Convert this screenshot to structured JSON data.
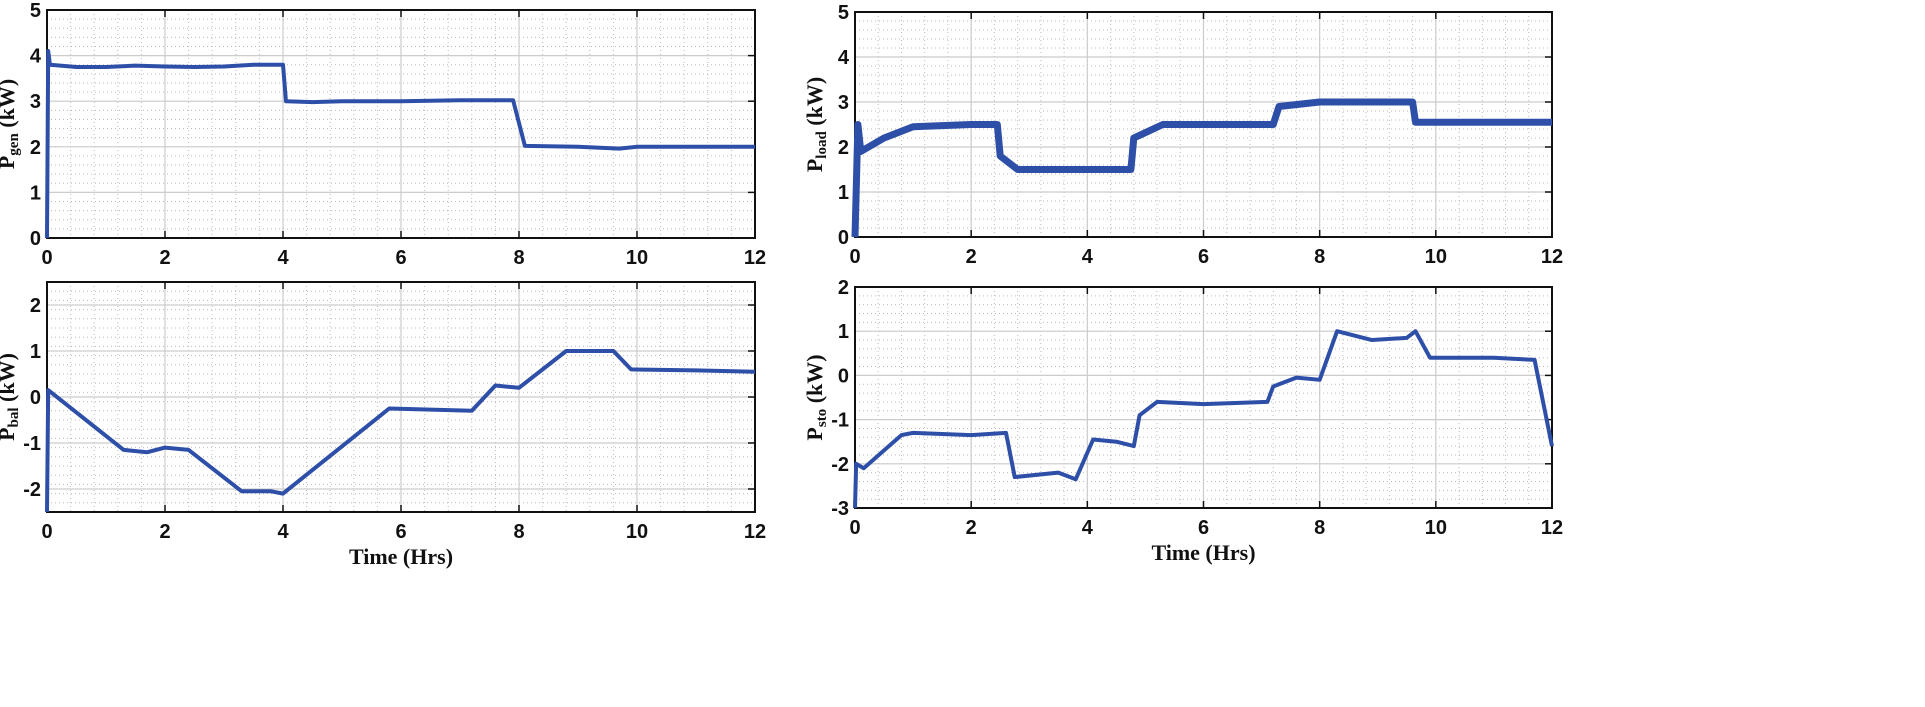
{
  "chart_data": [
    {
      "type": "line",
      "ylabel": {
        "main": "P",
        "sub": "gen",
        "unit": " (kW)"
      },
      "xlabel": "",
      "xlim": [
        0,
        12
      ],
      "ylim": [
        0,
        5
      ],
      "xticks": [
        0,
        2,
        4,
        6,
        8,
        10,
        12
      ],
      "yticks": [
        0,
        1,
        2,
        3,
        4,
        5
      ],
      "grid": true,
      "color": "#2e4fa8",
      "points": [
        [
          0,
          0
        ],
        [
          0.02,
          4.1
        ],
        [
          0.05,
          3.8
        ],
        [
          0.5,
          3.75
        ],
        [
          1,
          3.75
        ],
        [
          1.5,
          3.78
        ],
        [
          2,
          3.76
        ],
        [
          2.5,
          3.75
        ],
        [
          3,
          3.76
        ],
        [
          3.5,
          3.8
        ],
        [
          3.9,
          3.8
        ],
        [
          4,
          3.8
        ],
        [
          4.05,
          3.0
        ],
        [
          4.5,
          2.98
        ],
        [
          5,
          3.0
        ],
        [
          6,
          3.0
        ],
        [
          7,
          3.02
        ],
        [
          7.9,
          3.02
        ],
        [
          8.1,
          2.02
        ],
        [
          9,
          2.0
        ],
        [
          9.7,
          1.96
        ],
        [
          10,
          2.0
        ],
        [
          12,
          2.0
        ]
      ]
    },
    {
      "type": "line",
      "ylabel": {
        "main": "P",
        "sub": "load",
        "unit": " (kW)"
      },
      "xlabel": "",
      "xlim": [
        0,
        12
      ],
      "ylim": [
        0,
        5
      ],
      "xticks": [
        0,
        2,
        4,
        6,
        8,
        10,
        12
      ],
      "yticks": [
        0,
        1,
        2,
        3,
        4,
        5
      ],
      "grid": true,
      "color": "#2e4fa8",
      "points": [
        [
          0,
          0
        ],
        [
          0.05,
          2.5
        ],
        [
          0.1,
          1.9
        ],
        [
          0.5,
          2.2
        ],
        [
          1,
          2.45
        ],
        [
          2,
          2.5
        ],
        [
          2.45,
          2.5
        ],
        [
          2.5,
          1.8
        ],
        [
          2.8,
          1.5
        ],
        [
          4,
          1.5
        ],
        [
          4.75,
          1.5
        ],
        [
          4.8,
          2.2
        ],
        [
          5.3,
          2.5
        ],
        [
          7.2,
          2.5
        ],
        [
          7.3,
          2.9
        ],
        [
          8,
          3.0
        ],
        [
          9.6,
          3.0
        ],
        [
          9.65,
          2.55
        ],
        [
          12,
          2.55
        ]
      ]
    },
    {
      "type": "line",
      "ylabel": {
        "main": "P",
        "sub": "bal",
        "unit": " (kW)"
      },
      "xlabel": "Time (Hrs)",
      "xlim": [
        0,
        12
      ],
      "ylim": [
        -2.5,
        2.5
      ],
      "xticks": [
        0,
        2,
        4,
        6,
        8,
        10,
        12
      ],
      "yticks": [
        -2,
        -1,
        0,
        1,
        2
      ],
      "grid": true,
      "color": "#2e4fa8",
      "points": [
        [
          0,
          -2.5
        ],
        [
          0.02,
          0.15
        ],
        [
          1.3,
          -1.15
        ],
        [
          1.7,
          -1.2
        ],
        [
          2,
          -1.1
        ],
        [
          2.4,
          -1.15
        ],
        [
          3.3,
          -2.05
        ],
        [
          3.8,
          -2.05
        ],
        [
          4,
          -2.1
        ],
        [
          5.8,
          -0.25
        ],
        [
          7.2,
          -0.3
        ],
        [
          7.6,
          0.25
        ],
        [
          8,
          0.2
        ],
        [
          8.8,
          1.0
        ],
        [
          9.6,
          1.0
        ],
        [
          9.9,
          0.6
        ],
        [
          11,
          0.58
        ],
        [
          12,
          0.55
        ]
      ]
    },
    {
      "type": "line",
      "ylabel": {
        "main": "P",
        "sub": "sto",
        "unit": " (kW)"
      },
      "xlabel": "Time (Hrs)",
      "xlim": [
        0,
        12
      ],
      "ylim": [
        -3,
        2
      ],
      "xticks": [
        0,
        2,
        4,
        6,
        8,
        10,
        12
      ],
      "yticks": [
        -3,
        -2,
        -1,
        0,
        1,
        2
      ],
      "grid": true,
      "color": "#2e4fa8",
      "points": [
        [
          0,
          -3
        ],
        [
          0.02,
          -2.0
        ],
        [
          0.15,
          -2.1
        ],
        [
          0.8,
          -1.35
        ],
        [
          1,
          -1.3
        ],
        [
          2,
          -1.35
        ],
        [
          2.6,
          -1.3
        ],
        [
          2.75,
          -2.3
        ],
        [
          3.5,
          -2.2
        ],
        [
          3.8,
          -2.35
        ],
        [
          4.1,
          -1.45
        ],
        [
          4.5,
          -1.5
        ],
        [
          4.8,
          -1.6
        ],
        [
          4.9,
          -0.9
        ],
        [
          5.2,
          -0.6
        ],
        [
          6,
          -0.65
        ],
        [
          7.1,
          -0.6
        ],
        [
          7.2,
          -0.25
        ],
        [
          7.6,
          -0.05
        ],
        [
          8,
          -0.1
        ],
        [
          8.3,
          1.0
        ],
        [
          8.9,
          0.8
        ],
        [
          9.5,
          0.85
        ],
        [
          9.65,
          1.0
        ],
        [
          9.9,
          0.4
        ],
        [
          11,
          0.4
        ],
        [
          11.7,
          0.35
        ],
        [
          12,
          -1.6
        ]
      ]
    }
  ]
}
